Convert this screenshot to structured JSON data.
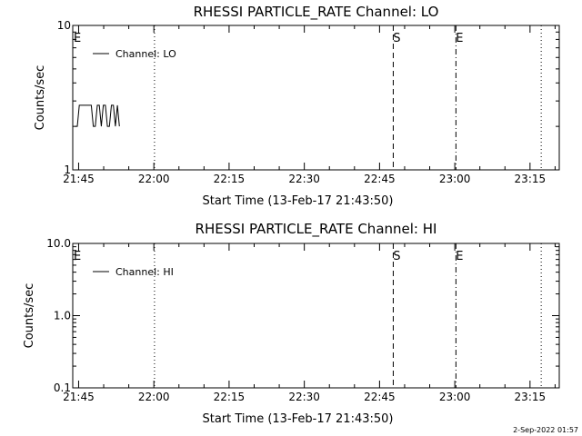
{
  "footer": "2-Sep-2022 01:57",
  "chart_data": [
    {
      "type": "line",
      "title": "RHESSI PARTICLE_RATE Channel: LO",
      "xlabel": "Start Time (13-Feb-17 21:43:50)",
      "ylabel": "Counts/sec",
      "y_scale": "log",
      "ylim": [
        1,
        10
      ],
      "y_ticks": [
        {
          "value": 1,
          "label": "1"
        },
        {
          "value": 10,
          "label": "10"
        }
      ],
      "x_start_minutes": 0,
      "xlim_minutes": [
        0,
        97
      ],
      "x_ticks": [
        {
          "minutes": 1.17,
          "label": "21:45"
        },
        {
          "minutes": 16.17,
          "label": "22:00"
        },
        {
          "minutes": 31.17,
          "label": "22:15"
        },
        {
          "minutes": 46.17,
          "label": "22:30"
        },
        {
          "minutes": 61.17,
          "label": "22:45"
        },
        {
          "minutes": 76.17,
          "label": "23:00"
        },
        {
          "minutes": 91.17,
          "label": "23:15"
        }
      ],
      "legend": {
        "placement": "top-left",
        "entries": [
          "Channel: LO"
        ]
      },
      "markers": [
        {
          "minutes": 0.2,
          "label": "E",
          "style": "none"
        },
        {
          "minutes": 16.3,
          "label": "",
          "style": "dotted"
        },
        {
          "minutes": 63.9,
          "label": "S",
          "style": "dashed"
        },
        {
          "minutes": 76.4,
          "label": "E",
          "style": "dashdot"
        },
        {
          "minutes": 93.4,
          "label": "",
          "style": "dotted"
        }
      ],
      "series": [
        {
          "name": "Channel: LO",
          "x_minutes": [
            0.0,
            0.4,
            0.8,
            1.2,
            1.6,
            2.0,
            2.4,
            2.8,
            3.2,
            3.6,
            4.0,
            4.4,
            4.8,
            5.2,
            5.6,
            6.0,
            6.4,
            6.8,
            7.2,
            7.6,
            8.0,
            8.4,
            8.8
          ],
          "values": [
            2.0,
            2.0,
            2.8,
            2.8,
            2.8,
            2.8,
            2.8,
            2.8,
            2.8,
            2.0,
            2.0,
            2.8,
            2.8,
            2.0,
            2.8,
            2.8,
            2.0,
            2.0,
            2.8,
            2.8,
            2.0,
            2.8,
            2.0
          ]
        }
      ]
    },
    {
      "type": "line",
      "title": "RHESSI PARTICLE_RATE Channel: HI",
      "xlabel": "Start Time (13-Feb-17 21:43:50)",
      "ylabel": "Counts/sec",
      "y_scale": "log",
      "ylim": [
        0.1,
        10
      ],
      "y_ticks": [
        {
          "value": 0.1,
          "label": "0.1"
        },
        {
          "value": 1,
          "label": "1.0"
        },
        {
          "value": 10,
          "label": "10.0"
        }
      ],
      "x_start_minutes": 0,
      "xlim_minutes": [
        0,
        97
      ],
      "x_ticks": [
        {
          "minutes": 1.17,
          "label": "21:45"
        },
        {
          "minutes": 16.17,
          "label": "22:00"
        },
        {
          "minutes": 31.17,
          "label": "22:15"
        },
        {
          "minutes": 46.17,
          "label": "22:30"
        },
        {
          "minutes": 61.17,
          "label": "22:45"
        },
        {
          "minutes": 76.17,
          "label": "23:00"
        },
        {
          "minutes": 91.17,
          "label": "23:15"
        }
      ],
      "legend": {
        "placement": "top-left",
        "entries": [
          "Channel: HI"
        ]
      },
      "markers": [
        {
          "minutes": 0.2,
          "label": "E",
          "style": "none"
        },
        {
          "minutes": 16.3,
          "label": "",
          "style": "dotted"
        },
        {
          "minutes": 63.9,
          "label": "S",
          "style": "dashed"
        },
        {
          "minutes": 76.4,
          "label": "E",
          "style": "dashdot"
        },
        {
          "minutes": 93.4,
          "label": "",
          "style": "dotted"
        }
      ],
      "series": [
        {
          "name": "Channel: HI",
          "x_minutes": [],
          "values": []
        }
      ]
    }
  ]
}
